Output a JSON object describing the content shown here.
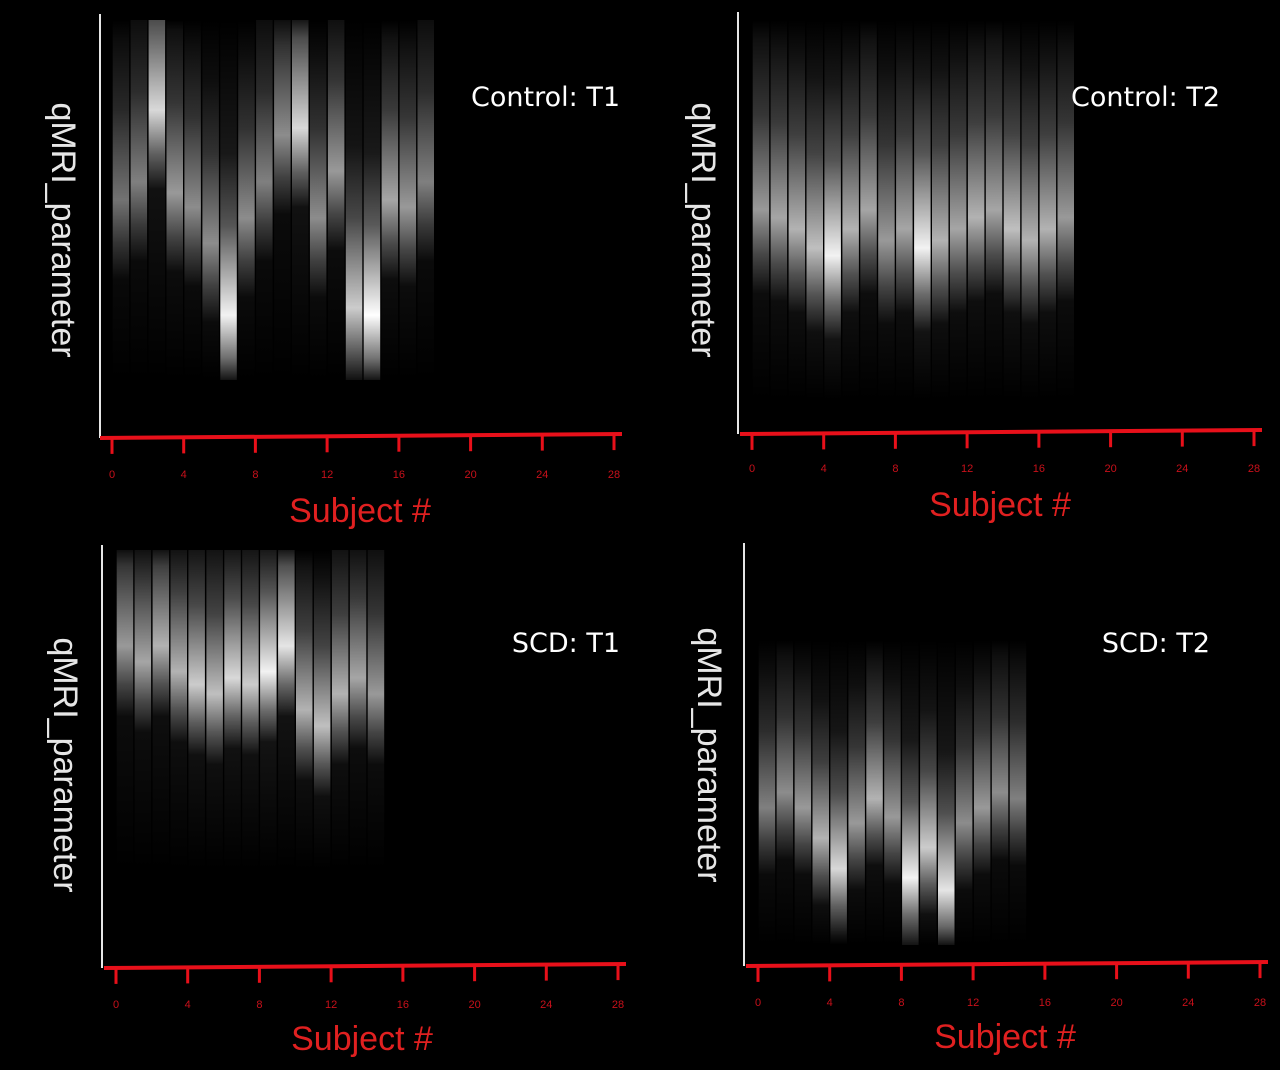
{
  "chart_data": [
    {
      "type": "heatmap",
      "title": "Control: T1",
      "xlabel": "Subject #",
      "ylabel": "qMRI_parameter",
      "xticks": [
        "0",
        "4",
        "8",
        "12",
        "16",
        "20",
        "24",
        "28"
      ],
      "xlim": [
        0,
        28
      ],
      "subjects": [
        0,
        1,
        2,
        3,
        4,
        5,
        6,
        7,
        8,
        9,
        10,
        11,
        12,
        13,
        14,
        15,
        16,
        17
      ],
      "peak_position": [
        0.5,
        0.45,
        0.25,
        0.48,
        0.52,
        0.62,
        0.82,
        0.55,
        0.45,
        0.32,
        0.3,
        0.55,
        0.42,
        0.8,
        0.82,
        0.5,
        0.52,
        0.45
      ],
      "peak_intensity": [
        0.45,
        0.5,
        0.85,
        0.6,
        0.55,
        0.55,
        0.95,
        0.55,
        0.5,
        0.55,
        0.85,
        0.55,
        0.6,
        0.8,
        1.0,
        0.65,
        0.6,
        0.5
      ]
    },
    {
      "type": "heatmap",
      "title": "Control: T2",
      "xlabel": "Subject #",
      "ylabel": "qMRI_parameter",
      "xticks": [
        "0",
        "4",
        "8",
        "12",
        "16",
        "20",
        "24",
        "28"
      ],
      "xlim": [
        0,
        28
      ],
      "subjects": [
        0,
        1,
        2,
        3,
        4,
        5,
        6,
        7,
        8,
        9,
        10,
        11,
        12,
        13,
        14,
        15,
        16,
        17
      ],
      "peak_position": [
        0.5,
        0.52,
        0.55,
        0.6,
        0.62,
        0.55,
        0.5,
        0.58,
        0.55,
        0.6,
        0.58,
        0.55,
        0.52,
        0.5,
        0.55,
        0.58,
        0.55,
        0.52
      ],
      "peak_intensity": [
        0.6,
        0.65,
        0.7,
        0.75,
        0.95,
        0.7,
        0.65,
        0.6,
        0.65,
        0.95,
        0.7,
        0.65,
        0.7,
        0.65,
        0.75,
        0.7,
        0.7,
        0.6
      ]
    },
    {
      "type": "heatmap",
      "title": "SCD: T1",
      "xlabel": "Subject #",
      "ylabel": "qMRI_parameter",
      "xticks": [
        "0",
        "4",
        "8",
        "12",
        "16",
        "20",
        "24",
        "28"
      ],
      "xlim": [
        0,
        28
      ],
      "subjects": [
        0,
        1,
        2,
        3,
        4,
        5,
        6,
        7,
        8,
        9,
        10,
        11,
        12,
        13,
        14
      ],
      "peak_position": [
        0.3,
        0.35,
        0.3,
        0.38,
        0.42,
        0.45,
        0.4,
        0.42,
        0.38,
        0.3,
        0.5,
        0.55,
        0.45,
        0.4,
        0.45
      ],
      "peak_intensity": [
        0.6,
        0.65,
        0.7,
        0.7,
        0.8,
        0.75,
        0.85,
        0.8,
        0.95,
        0.9,
        0.7,
        0.75,
        0.7,
        0.65,
        0.6
      ]
    },
    {
      "type": "heatmap",
      "title": "SCD: T2",
      "xlabel": "Subject #",
      "ylabel": "qMRI_parameter",
      "xticks": [
        "0",
        "4",
        "8",
        "12",
        "16",
        "20",
        "24",
        "28"
      ],
      "xlim": [
        0,
        28
      ],
      "subjects": [
        0,
        1,
        2,
        3,
        4,
        5,
        6,
        7,
        8,
        9,
        10,
        11,
        12,
        13,
        14
      ],
      "peak_position": [
        0.55,
        0.5,
        0.55,
        0.65,
        0.75,
        0.6,
        0.52,
        0.58,
        0.78,
        0.68,
        0.82,
        0.6,
        0.55,
        0.5,
        0.52
      ],
      "peak_intensity": [
        0.5,
        0.55,
        0.6,
        0.7,
        0.85,
        0.6,
        0.7,
        0.6,
        0.95,
        0.8,
        0.9,
        0.55,
        0.6,
        0.55,
        0.5
      ]
    }
  ],
  "colors": {
    "axis_x": "#e8101a",
    "axis_y": "#e6e6e6",
    "tick_label": "#c8101a",
    "xlabel": "#e02020",
    "ylabel": "#e6e6e6",
    "title": "#ffffff"
  }
}
